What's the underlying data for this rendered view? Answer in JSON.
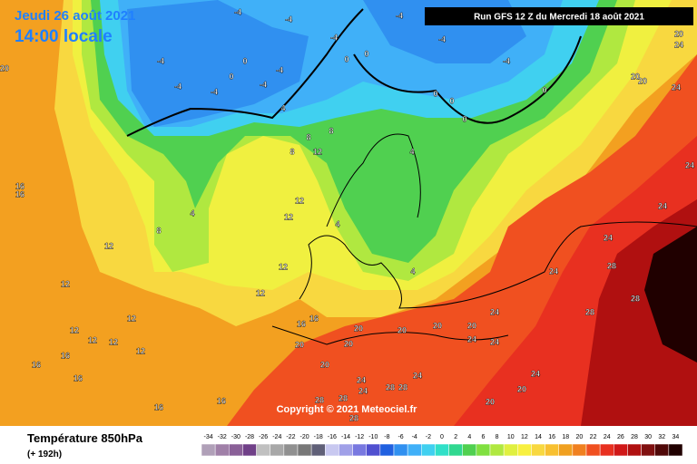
{
  "header": {
    "date": "Jeudi 26 août 2021",
    "time": "14:00 locale",
    "run": "Run GFS 12 Z du Mercredi 18 août 2021"
  },
  "copyright": "Copyright © 2021 Meteociel.fr",
  "legend": {
    "title": "Température 850hPa",
    "subtitle": "(+ 192h)",
    "ticks": [
      -34,
      -32,
      -30,
      -28,
      -26,
      -24,
      -22,
      -20,
      -18,
      -16,
      -14,
      -12,
      -10,
      -8,
      -6,
      -4,
      -2,
      0,
      2,
      4,
      6,
      8,
      10,
      12,
      14,
      16,
      18,
      20,
      22,
      24,
      26,
      28,
      30,
      32,
      34
    ],
    "colors": [
      "#b0a0b8",
      "#a080a8",
      "#8a6098",
      "#704088",
      "#c0c0c0",
      "#a8a8a8",
      "#909090",
      "#787878",
      "#606078",
      "#c8c8f0",
      "#a0a0e8",
      "#7878e0",
      "#5050d0",
      "#2060e0",
      "#3090f0",
      "#40b0f8",
      "#40d0f0",
      "#30e0c8",
      "#30d890",
      "#50d050",
      "#80e040",
      "#b0e840",
      "#e0f040",
      "#f8f040",
      "#f8d840",
      "#f8c030",
      "#f0a020",
      "#f08020",
      "#f05020",
      "#e83020",
      "#d01818",
      "#b01010",
      "#801010",
      "#500808",
      "#200000"
    ]
  },
  "contour_labels": [
    -4,
    -4,
    -4,
    -4,
    -4,
    -4,
    -4,
    -4,
    -4,
    -4,
    -4,
    0,
    0,
    0,
    0,
    0,
    0,
    0,
    0,
    4,
    4,
    4,
    4,
    4,
    8,
    8,
    8,
    8,
    12,
    12,
    12,
    12,
    12,
    12,
    12,
    12,
    12,
    12,
    12,
    12,
    16,
    16,
    16,
    16,
    16,
    16,
    16,
    16,
    16,
    20,
    20,
    20,
    20,
    20,
    20,
    20,
    20,
    20,
    20,
    20,
    20,
    20,
    24,
    24,
    24,
    24,
    24,
    24,
    24,
    24,
    24,
    24,
    24,
    24,
    24,
    28,
    28,
    28,
    28,
    28,
    28,
    28,
    28
  ]
}
